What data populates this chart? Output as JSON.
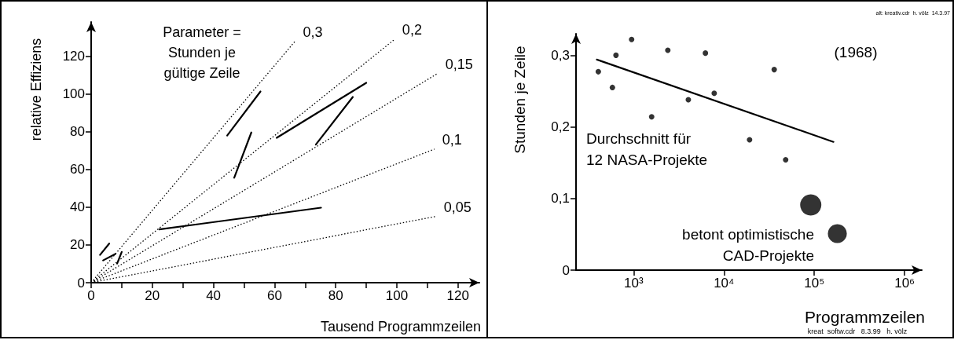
{
  "chart_data": [
    {
      "type": "line",
      "xlabel": "Tausend Programmzeilen",
      "ylabel": "relative Effiziens",
      "marker": "none",
      "xlim": [
        0,
        127
      ],
      "ylim": [
        0,
        138
      ],
      "xticks": [
        0,
        {
          "value": 10,
          "label": null
        },
        20,
        {
          "value": 30,
          "label": null
        },
        40,
        {
          "value": 50,
          "label": null
        },
        60,
        {
          "value": 70,
          "label": null
        },
        80,
        {
          "value": 90,
          "label": null
        },
        100,
        {
          "value": 110,
          "label": null
        },
        120
      ],
      "yticks": [
        0,
        20,
        40,
        60,
        80,
        100,
        120
      ],
      "annotations": [
        "Parameter =\nStunden je\ngültige Zeile"
      ],
      "series": [
        {
          "name": "0,3",
          "color": "#000000",
          "line_style": "dotted",
          "x": [
            0,
            66.7
          ],
          "values": [
            0,
            127.8
          ]
        },
        {
          "name": "0,2",
          "color": "#000000",
          "line_style": "dotted",
          "x": [
            0,
            99.2
          ],
          "values": [
            0,
            128.7
          ]
        },
        {
          "name": "0,15",
          "color": "#000000",
          "line_style": "dotted",
          "x": [
            0,
            113.3
          ],
          "values": [
            0,
            110.7
          ]
        },
        {
          "name": "0,1",
          "color": "#000000",
          "line_style": "dotted",
          "x": [
            0,
            112.3
          ],
          "values": [
            0,
            70.7
          ]
        },
        {
          "name": "0,05",
          "color": "#000000",
          "line_style": "dotted",
          "x": [
            0,
            112.8
          ],
          "values": [
            0,
            35.1
          ]
        },
        {
          "color": "#000000",
          "x": [
            44.5,
            55.4
          ],
          "values": [
            77.9,
            101.2
          ]
        },
        {
          "color": "#000000",
          "x": [
            46.8,
            52.4
          ],
          "values": [
            55.5,
            79.5
          ]
        },
        {
          "color": "#000000",
          "x": [
            60.7,
            90.0
          ],
          "values": [
            76.7,
            105.8
          ]
        },
        {
          "color": "#000000",
          "x": [
            73.5,
            85.6
          ],
          "values": [
            73.1,
            98.3
          ]
        },
        {
          "color": "#000000",
          "x": [
            22.3,
            75.2
          ],
          "values": [
            28.2,
            39.7
          ]
        },
        {
          "color": "#000000",
          "x": [
            2.9,
            5.9
          ],
          "values": [
            14.7,
            20.7
          ]
        },
        {
          "color": "#000000",
          "x": [
            3.9,
            7.9
          ],
          "values": [
            11.8,
            15.2
          ]
        },
        {
          "color": "#000000",
          "x": [
            8.5,
            10.0
          ],
          "values": [
            10.1,
            16.3
          ]
        }
      ]
    },
    {
      "type": "scatter",
      "xlabel": "Programmzeilen",
      "ylabel": "Stunden je Zeile",
      "marker": "circle",
      "log": "x",
      "xlim": [
        230,
        1550000
      ],
      "ylim": [
        0,
        0.33
      ],
      "xticks": [
        {
          "value": 1000,
          "label": "10³"
        },
        {
          "value": 10000,
          "label": "10⁴"
        },
        {
          "value": 100000,
          "label": "10⁵"
        },
        {
          "value": 1000000,
          "label": "10⁶"
        }
      ],
      "yticks": [
        0,
        {
          "value": 0.1,
          "label": "0,1"
        },
        {
          "value": 0.2,
          "label": "0,2"
        },
        {
          "value": 0.3,
          "label": "0,3"
        }
      ],
      "annotations": [
        "(1968)",
        "Durchschnitt für\n12 NASA-Projekte",
        "betont optimistische\nCAD-Projekte",
        "alt: kreativ.cdr  h. völz  14.3.97",
        "kreat  softw.cdr   8.3.99   h. völz"
      ],
      "series": [
        {
          "color": "#000000",
          "x": [
            406,
            582,
            637,
            949,
            1582,
            2390,
            4030,
            6230,
            7800,
            19200,
            36000,
            48200
          ],
          "values": [
            0.277,
            0.255,
            0.3,
            0.322,
            0.214,
            0.307,
            0.238,
            0.303,
            0.247,
            0.182,
            0.28,
            0.154
          ]
        },
        {
          "type": "line",
          "marker": "none",
          "color": "#000000",
          "x": [
            391,
            163000
          ],
          "values": [
            0.294,
            0.179
          ]
        },
        {
          "type": "bubble",
          "color": "#000000",
          "x": [
            91400,
            180000
          ],
          "values": [
            0.091,
            0.051
          ],
          "sizes": [
            1,
            0.8
          ]
        }
      ]
    }
  ]
}
